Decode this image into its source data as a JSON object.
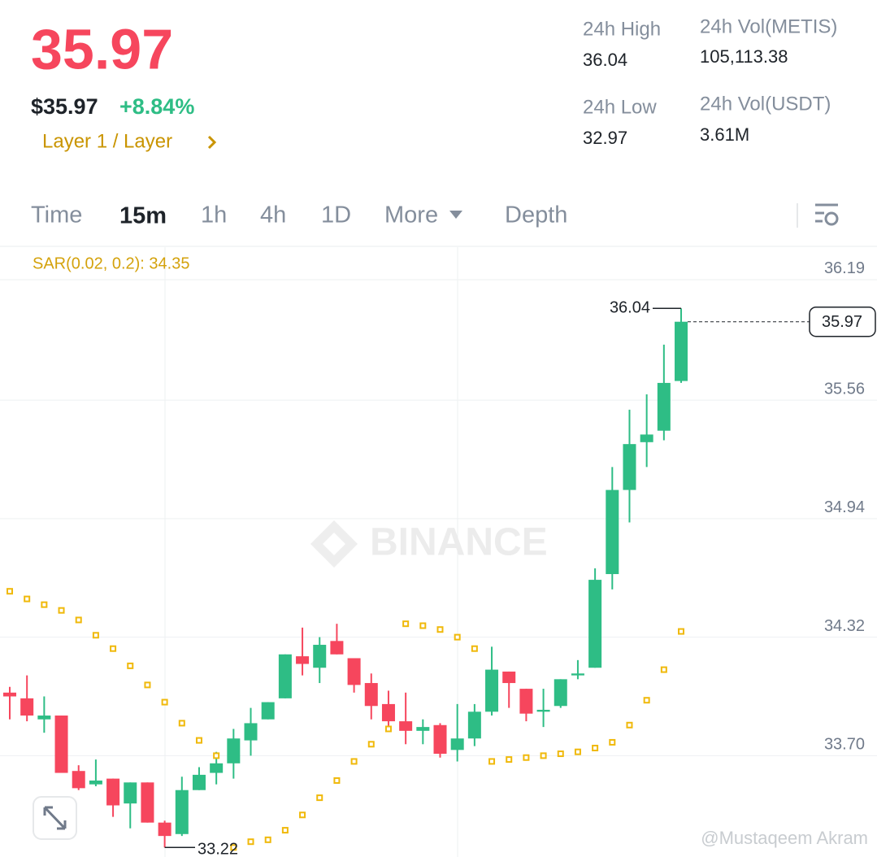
{
  "header": {
    "price": "35.97",
    "price_usd": "$35.97",
    "change": "+8.84%",
    "tag": "Layer 1 / Layer",
    "stats": [
      {
        "label": "24h High",
        "value": "36.04"
      },
      {
        "label": "24h Vol(METIS)",
        "value": "105,113.38"
      },
      {
        "label": "24h Low",
        "value": "32.97"
      },
      {
        "label": "24h Vol(USDT)",
        "value": "3.61M"
      }
    ]
  },
  "tabs": [
    "Time",
    "15m",
    "1h",
    "4h",
    "1D",
    "More",
    "Depth"
  ],
  "watermark": "BINANCE",
  "credit": "@Mustaqeem Akram",
  "chart_data": {
    "type": "candlestick",
    "indicator_label": "SAR(0.02, 0.2): 34.35",
    "ylim": [
      33.17,
      36.36
    ],
    "yticks": [
      {
        "value": 33.7,
        "label": "33.70"
      },
      34.32,
      34.94,
      35.56,
      36.19
    ],
    "up_color": "#2ebd85",
    "down_color": "#f6465d",
    "grid": true,
    "open": [
      34.03,
      34.0,
      33.89,
      33.91,
      33.62,
      33.55,
      33.58,
      33.45,
      33.56,
      33.35,
      33.29,
      33.52,
      33.61,
      33.66,
      33.78,
      33.89,
      34.0,
      34.22,
      34.16,
      34.3,
      34.21,
      34.08,
      33.97,
      33.88,
      33.83,
      33.86,
      33.73,
      33.79,
      33.93,
      34.14,
      34.05,
      33.93,
      33.96,
      34.12,
      34.16,
      34.65,
      35.09,
      35.34,
      35.4,
      35.66
    ],
    "high": [
      34.06,
      34.12,
      34.01,
      33.91,
      33.65,
      33.68,
      33.58,
      33.56,
      33.56,
      33.36,
      33.59,
      33.64,
      33.72,
      33.84,
      33.95,
      33.98,
      34.23,
      34.37,
      34.32,
      34.39,
      34.21,
      34.13,
      34.04,
      34.03,
      33.89,
      33.87,
      33.97,
      33.97,
      34.27,
      34.14,
      34.05,
      34.05,
      34.1,
      34.2,
      34.68,
      35.21,
      35.51,
      35.59,
      35.85,
      36.04
    ],
    "low": [
      33.89,
      33.88,
      33.82,
      33.61,
      33.52,
      33.54,
      33.38,
      33.32,
      33.35,
      33.22,
      33.28,
      33.52,
      33.55,
      33.58,
      33.7,
      33.89,
      34.0,
      34.12,
      34.08,
      34.23,
      34.03,
      33.89,
      33.84,
      33.76,
      33.76,
      33.69,
      33.67,
      33.75,
      33.91,
      33.95,
      33.88,
      33.85,
      33.95,
      34.1,
      34.16,
      34.57,
      34.92,
      35.21,
      35.35,
      35.65
    ],
    "close": [
      34.01,
      33.91,
      33.91,
      33.61,
      33.53,
      33.57,
      33.44,
      33.56,
      33.35,
      33.28,
      33.52,
      33.6,
      33.66,
      33.79,
      33.87,
      33.98,
      34.23,
      34.18,
      34.28,
      34.23,
      34.07,
      33.96,
      33.88,
      33.83,
      33.85,
      33.71,
      33.79,
      33.93,
      34.15,
      34.08,
      33.92,
      33.94,
      34.1,
      34.13,
      34.62,
      35.09,
      35.33,
      35.38,
      35.65,
      35.97
    ],
    "sar": {
      "name": "SAR",
      "color": "#f0b90b",
      "values": [
        34.56,
        34.52,
        34.49,
        34.46,
        34.41,
        34.33,
        34.26,
        34.17,
        34.07,
        33.98,
        33.87,
        33.78,
        33.7,
        33.22,
        33.25,
        33.26,
        33.31,
        33.39,
        33.48,
        33.57,
        33.67,
        33.76,
        33.84,
        34.39,
        34.38,
        34.36,
        34.32,
        34.26,
        33.67,
        33.68,
        33.69,
        33.7,
        33.71,
        33.72,
        33.74,
        33.77,
        33.86,
        33.99,
        34.15,
        34.35
      ]
    },
    "max_marker": 36.04,
    "min_marker": 33.22,
    "last_price": 35.97
  }
}
